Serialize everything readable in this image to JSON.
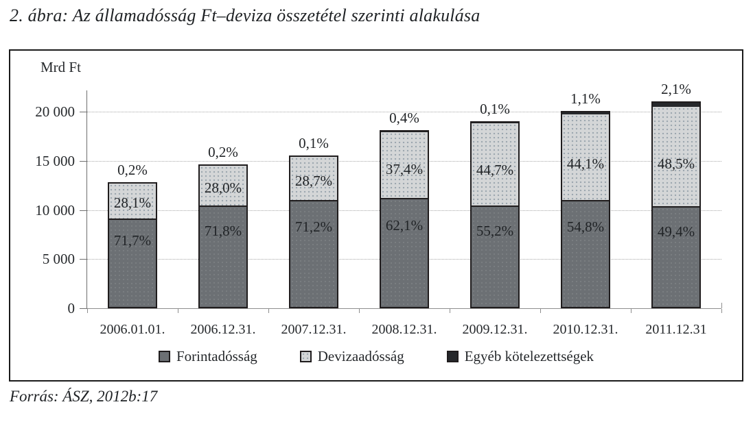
{
  "title": "2. ábra: Az államadósság Ft–deviza összetétel szerinti alakulása",
  "source": "Forrás: ÁSZ, 2012b:17",
  "chart_data": {
    "type": "bar",
    "stacked": true,
    "title": "2. ábra: Az államadósság Ft–deviza összetétel szerinti alakulása",
    "unit_label": "Mrd Ft",
    "grid": true,
    "legend_position": "bottom",
    "categories": [
      "2006.01.01.",
      "2006.12.31.",
      "2007.12.31.",
      "2008.12.31.",
      "2009.12.31.",
      "2010.12.31.",
      "2011.12.31"
    ],
    "totals_mrd_ft": [
      12850,
      14650,
      15550,
      18150,
      19000,
      20100,
      21050
    ],
    "series": [
      {
        "name": "Forintadósság",
        "color": "#6c7074",
        "pct": [
          71.7,
          71.8,
          71.2,
          62.1,
          55.2,
          54.8,
          49.4
        ],
        "labels": [
          "71,7%",
          "71,8%",
          "71,2%",
          "62,1%",
          "55,2%",
          "54,8%",
          "49,4%"
        ]
      },
      {
        "name": "Devizaadósság",
        "color": "#d4d6d7",
        "pct": [
          28.1,
          28.0,
          28.7,
          37.4,
          44.7,
          44.1,
          48.5
        ],
        "labels": [
          "28,1%",
          "28,0%",
          "28,7%",
          "37,4%",
          "44,7%",
          "44,1%",
          "48,5%"
        ]
      },
      {
        "name": "Egyéb kötelezettségek",
        "color": "#26282b",
        "pct": [
          0.2,
          0.2,
          0.1,
          0.4,
          0.1,
          1.1,
          2.1
        ],
        "labels": [
          "0,2%",
          "0,2%",
          "0,1%",
          "0,4%",
          "0,1%",
          "1,1%",
          "2,1%"
        ]
      }
    ],
    "y_axis": {
      "tick_labels": [
        "20 000",
        "15 000",
        "10 000",
        "5 000",
        "0"
      ],
      "tick_values": [
        20000,
        15000,
        10000,
        5000,
        0
      ],
      "range": [
        0,
        21500
      ]
    }
  }
}
